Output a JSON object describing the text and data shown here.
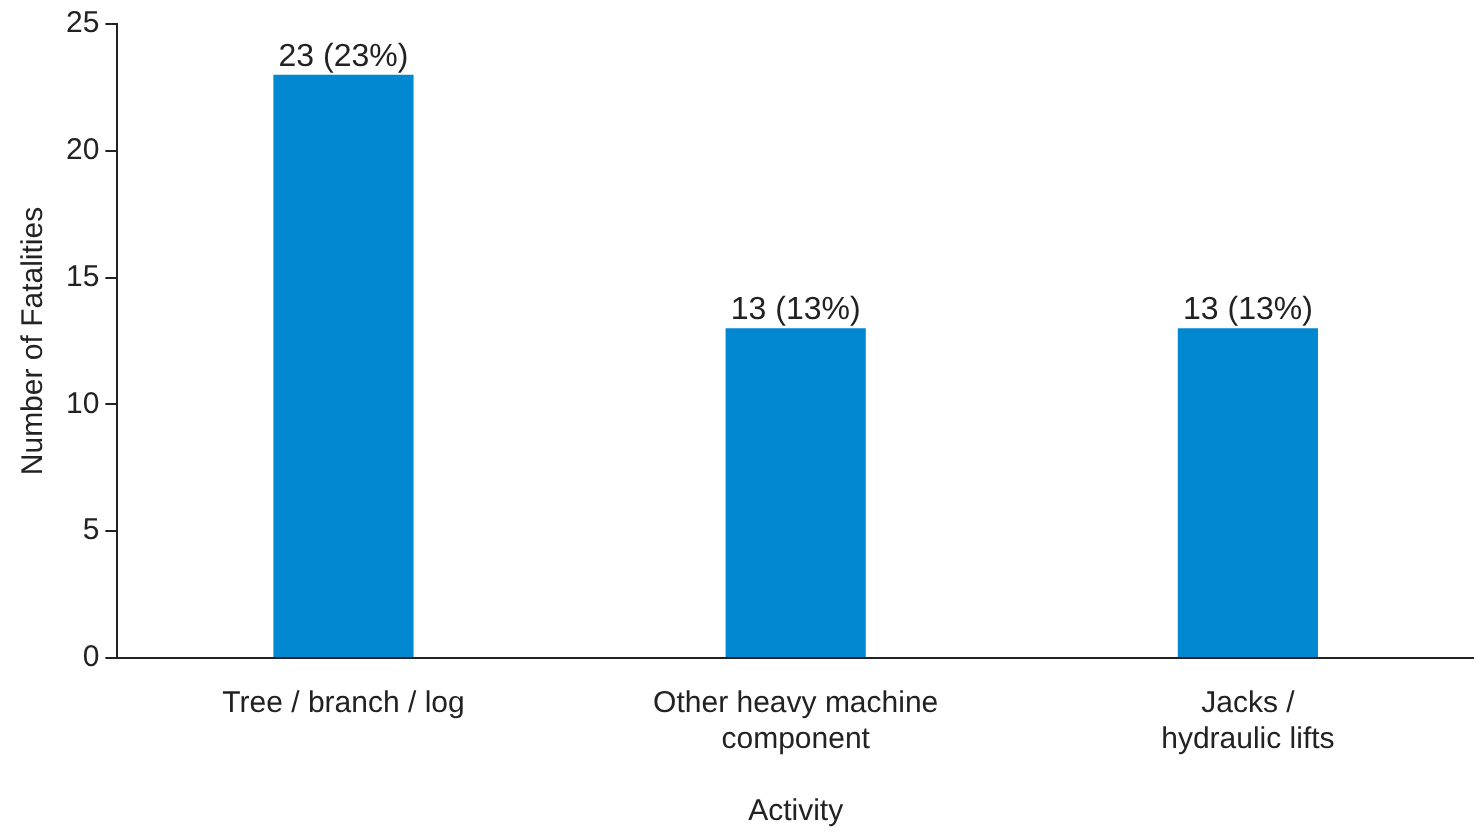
{
  "chart_data": {
    "type": "bar",
    "xlabel": "Activity",
    "ylabel": "Number of Fatalities",
    "categories": [
      "Tree / branch / log",
      "Other heavy machine\ncomponent",
      "Jacks /\nhydraulic lifts"
    ],
    "values": [
      23,
      13,
      13
    ],
    "color": "#0288d1",
    "value_labels": [
      "23 (23%)",
      "13 (13%)",
      "13 (13%)"
    ],
    "ylim": [
      0,
      25
    ],
    "yticks": [
      0,
      5,
      10,
      15,
      20,
      25
    ],
    "grid": false,
    "legend": false
  }
}
